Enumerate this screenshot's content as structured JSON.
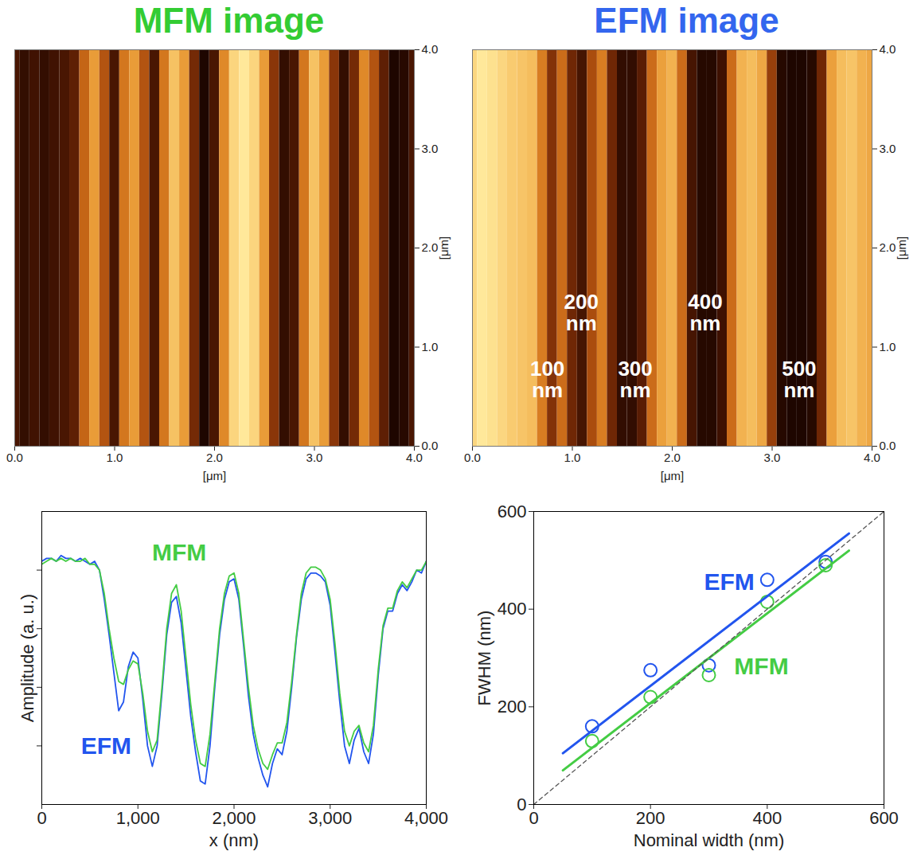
{
  "chart_data": [
    {
      "type": "heatmap",
      "title": "MFM image",
      "color": "#33cc33",
      "x": [
        0,
        0.1,
        0.2,
        0.3,
        0.4,
        0.5,
        0.6,
        0.7,
        0.8,
        0.9,
        1,
        1.1,
        1.2,
        1.3,
        1.4,
        1.5,
        1.6,
        1.7,
        1.8,
        1.9,
        2,
        2.1,
        2.2,
        2.3,
        2.4,
        2.5,
        2.6,
        2.7,
        2.8,
        2.9,
        3,
        3.1,
        3.2,
        3.3,
        3.4,
        3.5,
        3.6,
        3.7,
        3.8,
        3.9,
        4
      ],
      "values": [
        0.3,
        0.25,
        0.28,
        0.25,
        0.28,
        0.3,
        0.35,
        0.6,
        0.75,
        0.55,
        0.3,
        0.65,
        0.75,
        0.55,
        0.3,
        0.65,
        0.85,
        0.75,
        0.4,
        0.2,
        0.3,
        0.7,
        0.9,
        0.95,
        0.9,
        0.75,
        0.45,
        0.25,
        0.3,
        0.65,
        0.85,
        0.75,
        0.45,
        0.25,
        0.4,
        0.7,
        0.55,
        0.35,
        0.2,
        0.22,
        0.3
      ],
      "xlim": [
        0,
        4
      ],
      "ylim": [
        0,
        4
      ],
      "xticks": [
        0,
        1,
        2,
        3,
        4
      ],
      "yticks": [
        0,
        1,
        2,
        3,
        4
      ],
      "x_label": "[μm]",
      "y_label": "[μm]"
    },
    {
      "type": "heatmap",
      "title": "EFM image",
      "color": "#3366ee",
      "x": [
        0,
        0.1,
        0.2,
        0.3,
        0.4,
        0.5,
        0.6,
        0.7,
        0.8,
        0.9,
        1,
        1.1,
        1.2,
        1.3,
        1.4,
        1.5,
        1.6,
        1.7,
        1.8,
        1.9,
        2,
        2.1,
        2.2,
        2.3,
        2.4,
        2.5,
        2.6,
        2.7,
        2.8,
        2.9,
        3,
        3.1,
        3.2,
        3.3,
        3.4,
        3.5,
        3.6,
        3.7,
        3.8,
        3.9,
        4
      ],
      "values": [
        0.85,
        0.9,
        0.88,
        0.85,
        0.82,
        0.8,
        0.78,
        0.6,
        0.35,
        0.55,
        0.3,
        0.2,
        0.45,
        0.6,
        0.3,
        0.15,
        0.15,
        0.25,
        0.55,
        0.7,
        0.75,
        0.55,
        0.2,
        0.12,
        0.12,
        0.18,
        0.55,
        0.75,
        0.78,
        0.72,
        0.4,
        0.12,
        0.1,
        0.1,
        0.12,
        0.3,
        0.7,
        0.78,
        0.8,
        0.75,
        0.72
      ],
      "xlim": [
        0,
        4
      ],
      "ylim": [
        0,
        4
      ],
      "xticks": [
        0,
        1,
        2,
        3,
        4
      ],
      "yticks": [
        0,
        1,
        2,
        3,
        4
      ],
      "x_label": "[μm]",
      "y_label": "[μm]",
      "annotations": [
        {
          "text": "100 nm",
          "x": 0.75,
          "y": 0.67
        },
        {
          "text": "200 nm",
          "x": 1.09,
          "y": 1.35
        },
        {
          "text": "300 nm",
          "x": 1.63,
          "y": 0.67
        },
        {
          "text": "400 nm",
          "x": 2.33,
          "y": 1.35
        },
        {
          "text": "500 nm",
          "x": 3.27,
          "y": 0.67
        }
      ]
    },
    {
      "type": "line",
      "x_label": "x (nm)",
      "y_label": "Amplitude (a. u.)",
      "x": [
        0,
        50,
        100,
        150,
        200,
        250,
        300,
        350,
        400,
        450,
        500,
        550,
        600,
        650,
        700,
        750,
        800,
        850,
        900,
        950,
        1000,
        1050,
        1100,
        1150,
        1200,
        1250,
        1300,
        1350,
        1400,
        1450,
        1500,
        1550,
        1600,
        1650,
        1700,
        1750,
        1800,
        1850,
        1900,
        1950,
        2000,
        2050,
        2100,
        2150,
        2200,
        2250,
        2300,
        2350,
        2400,
        2450,
        2500,
        2550,
        2600,
        2650,
        2700,
        2750,
        2800,
        2850,
        2900,
        2950,
        3000,
        3050,
        3100,
        3150,
        3200,
        3250,
        3300,
        3350,
        3400,
        3450,
        3500,
        3550,
        3600,
        3650,
        3700,
        3750,
        3800,
        3850,
        3900,
        3950,
        4000
      ],
      "series": [
        {
          "name": "EFM",
          "color": "#2255ee",
          "values": [
            0.83,
            0.84,
            0.84,
            0.83,
            0.85,
            0.84,
            0.84,
            0.83,
            0.84,
            0.83,
            0.82,
            0.83,
            0.8,
            0.7,
            0.58,
            0.45,
            0.32,
            0.35,
            0.47,
            0.52,
            0.5,
            0.36,
            0.2,
            0.13,
            0.2,
            0.38,
            0.58,
            0.69,
            0.71,
            0.62,
            0.46,
            0.3,
            0.18,
            0.08,
            0.07,
            0.2,
            0.4,
            0.58,
            0.7,
            0.76,
            0.77,
            0.7,
            0.54,
            0.37,
            0.24,
            0.16,
            0.1,
            0.06,
            0.14,
            0.19,
            0.17,
            0.25,
            0.4,
            0.57,
            0.7,
            0.77,
            0.79,
            0.79,
            0.78,
            0.76,
            0.68,
            0.52,
            0.35,
            0.2,
            0.14,
            0.22,
            0.26,
            0.18,
            0.14,
            0.24,
            0.44,
            0.6,
            0.66,
            0.66,
            0.72,
            0.75,
            0.73,
            0.76,
            0.8,
            0.79,
            0.83
          ]
        },
        {
          "name": "MFM",
          "color": "#44cc44",
          "values": [
            0.82,
            0.83,
            0.84,
            0.83,
            0.84,
            0.83,
            0.84,
            0.83,
            0.83,
            0.84,
            0.82,
            0.82,
            0.8,
            0.72,
            0.6,
            0.5,
            0.42,
            0.41,
            0.46,
            0.49,
            0.48,
            0.38,
            0.25,
            0.18,
            0.22,
            0.4,
            0.6,
            0.72,
            0.75,
            0.66,
            0.5,
            0.34,
            0.22,
            0.14,
            0.13,
            0.24,
            0.42,
            0.6,
            0.72,
            0.78,
            0.79,
            0.72,
            0.56,
            0.4,
            0.27,
            0.19,
            0.14,
            0.12,
            0.17,
            0.21,
            0.21,
            0.28,
            0.42,
            0.58,
            0.72,
            0.79,
            0.81,
            0.81,
            0.8,
            0.77,
            0.7,
            0.55,
            0.38,
            0.25,
            0.2,
            0.25,
            0.27,
            0.21,
            0.18,
            0.27,
            0.46,
            0.61,
            0.67,
            0.67,
            0.73,
            0.76,
            0.74,
            0.77,
            0.8,
            0.8,
            0.83
          ]
        }
      ],
      "xlim": [
        0,
        4000
      ],
      "xticks": [
        0,
        1000,
        2000,
        3000,
        4000
      ],
      "ylim": [
        0,
        1
      ],
      "yticks": [
        0.2,
        0.4,
        0.6,
        0.8
      ],
      "tick_labels": "x",
      "annotations": [
        {
          "text": "MFM",
          "x": 1430,
          "y": 0.86
        },
        {
          "text": "EFM",
          "x": 670,
          "y": 0.2
        }
      ]
    },
    {
      "type": "scatter",
      "x_label": "Nominal width (nm)",
      "y_label": "FWHM (nm)",
      "xlim": [
        0,
        600
      ],
      "xticks": [
        0,
        200,
        400,
        600
      ],
      "ylim": [
        0,
        600
      ],
      "yticks": [
        0,
        200,
        400,
        600
      ],
      "series": [
        {
          "name": "EFM",
          "color": "#2255ee",
          "marker": "circle",
          "x": [
            100,
            200,
            300,
            400,
            500
          ],
          "values": [
            160,
            275,
            285,
            460,
            497
          ]
        },
        {
          "name": "MFM",
          "color": "#44cc44",
          "marker": "circle",
          "x": [
            100,
            200,
            300,
            400,
            500
          ],
          "values": [
            130,
            220,
            265,
            415,
            490
          ]
        },
        {
          "type": "line",
          "color": "#2255ee",
          "line_style": "solid",
          "x": [
            50,
            540
          ],
          "values": [
            105,
            555
          ]
        },
        {
          "type": "line",
          "color": "#44cc44",
          "line_style": "solid",
          "x": [
            50,
            540
          ],
          "values": [
            70,
            520
          ]
        },
        {
          "type": "line",
          "color": "#555555",
          "line_style": "dashed",
          "x": [
            0,
            600
          ],
          "values": [
            0,
            600
          ]
        }
      ],
      "annotations": [
        {
          "text": "EFM",
          "x": 335,
          "y": 455
        },
        {
          "text": "MFM",
          "x": 390,
          "y": 282
        }
      ]
    }
  ]
}
